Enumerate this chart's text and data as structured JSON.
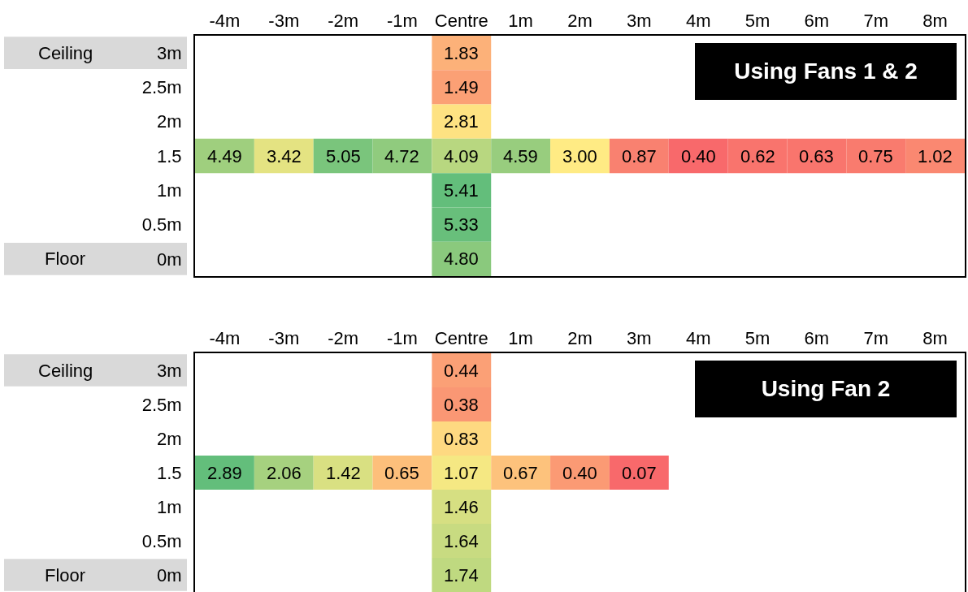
{
  "chart_data": [
    {
      "type": "heatmap",
      "categories": [
        "-4m",
        "-3m",
        "-2m",
        "-1m",
        "Centre",
        "1m",
        "2m",
        "3m",
        "4m",
        "5m",
        "6m",
        "7m",
        "8m"
      ],
      "y_categories": [
        "3m",
        "2.5m",
        "2m",
        "1.5",
        "1m",
        "0.5m",
        "0m"
      ],
      "y2_categories": [
        "Ceiling",
        null,
        null,
        null,
        null,
        null,
        "Floor"
      ],
      "cells": [
        [
          null,
          null,
          null,
          null,
          1.83,
          null,
          null,
          null,
          null,
          null,
          null,
          null,
          null
        ],
        [
          null,
          null,
          null,
          null,
          1.49,
          null,
          null,
          null,
          null,
          null,
          null,
          null,
          null
        ],
        [
          null,
          null,
          null,
          null,
          2.81,
          null,
          null,
          null,
          null,
          null,
          null,
          null,
          null
        ],
        [
          4.49,
          3.42,
          5.05,
          4.72,
          4.09,
          4.59,
          3.0,
          0.87,
          0.4,
          0.62,
          0.63,
          0.75,
          1.02
        ],
        [
          null,
          null,
          null,
          null,
          5.41,
          null,
          null,
          null,
          null,
          null,
          null,
          null,
          null
        ],
        [
          null,
          null,
          null,
          null,
          5.33,
          null,
          null,
          null,
          null,
          null,
          null,
          null,
          null
        ],
        [
          null,
          null,
          null,
          null,
          4.8,
          null,
          null,
          null,
          null,
          null,
          null,
          null,
          null
        ]
      ],
      "cell_labels": [
        [
          null,
          null,
          null,
          null,
          "1.83",
          null,
          null,
          null,
          null,
          null,
          null,
          null,
          null
        ],
        [
          null,
          null,
          null,
          null,
          "1.49",
          null,
          null,
          null,
          null,
          null,
          null,
          null,
          null
        ],
        [
          null,
          null,
          null,
          null,
          "2.81",
          null,
          null,
          null,
          null,
          null,
          null,
          null,
          null
        ],
        [
          "4.49",
          "3.42",
          "5.05",
          "4.72",
          "4.09",
          "4.59",
          "3.00",
          "0.87",
          "0.40",
          "0.62",
          "0.63",
          "0.75",
          "1.02"
        ],
        [
          null,
          null,
          null,
          null,
          "5.41",
          null,
          null,
          null,
          null,
          null,
          null,
          null,
          null
        ],
        [
          null,
          null,
          null,
          null,
          "5.33",
          null,
          null,
          null,
          null,
          null,
          null,
          null,
          null
        ],
        [
          null,
          null,
          null,
          null,
          "4.80",
          null,
          null,
          null,
          null,
          null,
          null,
          null,
          null
        ]
      ],
      "annotations": [
        "Using Fans 1 & 2"
      ]
    },
    {
      "type": "heatmap",
      "categories": [
        "-4m",
        "-3m",
        "-2m",
        "-1m",
        "Centre",
        "1m",
        "2m",
        "3m",
        "4m",
        "5m",
        "6m",
        "7m",
        "8m"
      ],
      "y_categories": [
        "3m",
        "2.5m",
        "2m",
        "1.5",
        "1m",
        "0.5m",
        "0m"
      ],
      "y2_categories": [
        "Ceiling",
        null,
        null,
        null,
        null,
        null,
        "Floor"
      ],
      "cells": [
        [
          null,
          null,
          null,
          null,
          0.44,
          null,
          null,
          null,
          null,
          null,
          null,
          null,
          null
        ],
        [
          null,
          null,
          null,
          null,
          0.38,
          null,
          null,
          null,
          null,
          null,
          null,
          null,
          null
        ],
        [
          null,
          null,
          null,
          null,
          0.83,
          null,
          null,
          null,
          null,
          null,
          null,
          null,
          null
        ],
        [
          2.89,
          2.06,
          1.42,
          0.65,
          1.07,
          0.67,
          0.4,
          0.07,
          null,
          null,
          null,
          null,
          null
        ],
        [
          null,
          null,
          null,
          null,
          1.46,
          null,
          null,
          null,
          null,
          null,
          null,
          null,
          null
        ],
        [
          null,
          null,
          null,
          null,
          1.64,
          null,
          null,
          null,
          null,
          null,
          null,
          null,
          null
        ],
        [
          null,
          null,
          null,
          null,
          1.74,
          null,
          null,
          null,
          null,
          null,
          null,
          null,
          null
        ]
      ],
      "cell_labels": [
        [
          null,
          null,
          null,
          null,
          "0.44",
          null,
          null,
          null,
          null,
          null,
          null,
          null,
          null
        ],
        [
          null,
          null,
          null,
          null,
          "0.38",
          null,
          null,
          null,
          null,
          null,
          null,
          null,
          null
        ],
        [
          null,
          null,
          null,
          null,
          "0.83",
          null,
          null,
          null,
          null,
          null,
          null,
          null,
          null
        ],
        [
          "2.89",
          "2.06",
          "1.42",
          "0.65",
          "1.07",
          "0.67",
          "0.40",
          "0.07",
          null,
          null,
          null,
          null,
          null
        ],
        [
          null,
          null,
          null,
          null,
          "1.46",
          null,
          null,
          null,
          null,
          null,
          null,
          null,
          null
        ],
        [
          null,
          null,
          null,
          null,
          "1.64",
          null,
          null,
          null,
          null,
          null,
          null,
          null,
          null
        ],
        [
          null,
          null,
          null,
          null,
          "1.74",
          null,
          null,
          null,
          null,
          null,
          null,
          null,
          null
        ]
      ],
      "annotations": [
        "Using Fan 2"
      ]
    }
  ]
}
